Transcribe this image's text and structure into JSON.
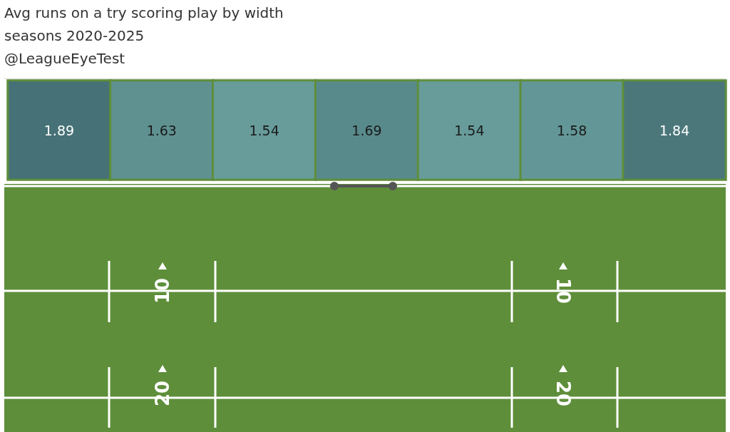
{
  "chart_data": {
    "type": "heatmap",
    "title": "Avg runs on a try scoring play by width",
    "subtitle": "seasons 2020-2025",
    "annotations": [
      "@LeagueEyeTest",
      "10",
      "10",
      "20",
      "20"
    ],
    "categories": [
      null,
      null,
      null,
      null,
      null,
      null,
      null
    ],
    "y_categories": [
      null
    ],
    "cells": [
      [
        1.89,
        1.63,
        1.54,
        1.69,
        1.54,
        1.58,
        1.84
      ]
    ],
    "data_labels": true
  }
}
